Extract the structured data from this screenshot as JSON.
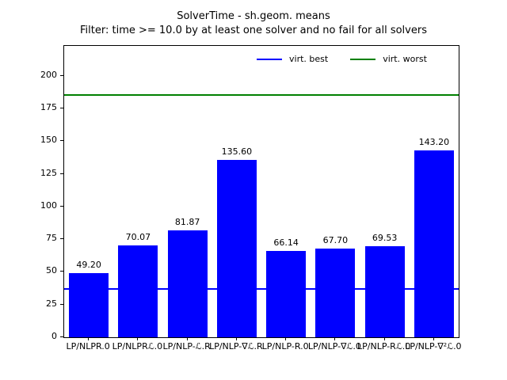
{
  "chart_data": {
    "type": "bar",
    "title": "SolverTime - sh.geom. means",
    "subtitle": "Filter: time >= 10.0 by at least one solver and no fail for all solvers",
    "categories": [
      "LP/NLPR.0",
      "LP/NLPRℒ.0",
      "LP/NLP-ℒ.R",
      "LP/NLP-∇ℒ.R",
      "LP/NLP-R.0",
      "LP/NLP-∇ℒ.0",
      "LP/NLP-Rℒ.0",
      "LP/NLP-∇²ℒ.0"
    ],
    "values": [
      49.2,
      70.07,
      81.87,
      135.6,
      66.14,
      67.7,
      69.53,
      143.2
    ],
    "value_labels": [
      "49.20",
      "70.07",
      "81.87",
      "135.60",
      "66.14",
      "67.70",
      "69.53",
      "143.20"
    ],
    "bar_color": "#0000ff",
    "hlines": [
      {
        "name": "virt. best",
        "value": 36.8,
        "color": "#0000ff"
      },
      {
        "name": "virt. worst",
        "value": 185.7,
        "color": "#008000"
      }
    ],
    "legend": {
      "position": "upper center-right",
      "entries": [
        {
          "label": "virt. best",
          "color": "#0000ff"
        },
        {
          "label": "virt. worst",
          "color": "#008000"
        }
      ]
    },
    "xlabel": "",
    "ylabel": "",
    "ylim": [
      0,
      223
    ],
    "yticks": [
      0,
      25,
      50,
      75,
      100,
      125,
      150,
      175,
      200
    ],
    "grid": false
  }
}
